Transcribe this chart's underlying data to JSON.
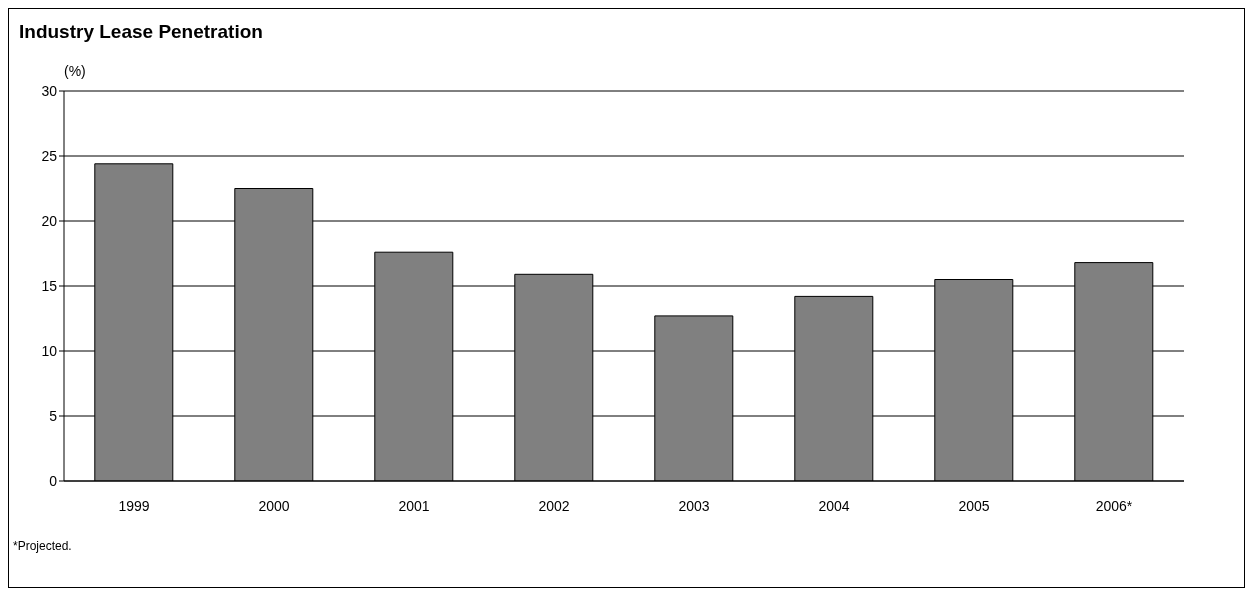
{
  "chart_data": {
    "type": "bar",
    "title": "Industry Lease Penetration",
    "ylabel": "(%)",
    "categories": [
      "1999",
      "2000",
      "2001",
      "2002",
      "2003",
      "2004",
      "2005",
      "2006*"
    ],
    "values": [
      24.4,
      22.5,
      17.6,
      15.9,
      12.7,
      14.2,
      15.5,
      16.8
    ],
    "color": "#808080",
    "ylim": [
      0,
      30
    ],
    "yticks": [
      0,
      5,
      10,
      15,
      20,
      25,
      30
    ],
    "grid": "y",
    "annotations": [
      "*Projected."
    ]
  }
}
